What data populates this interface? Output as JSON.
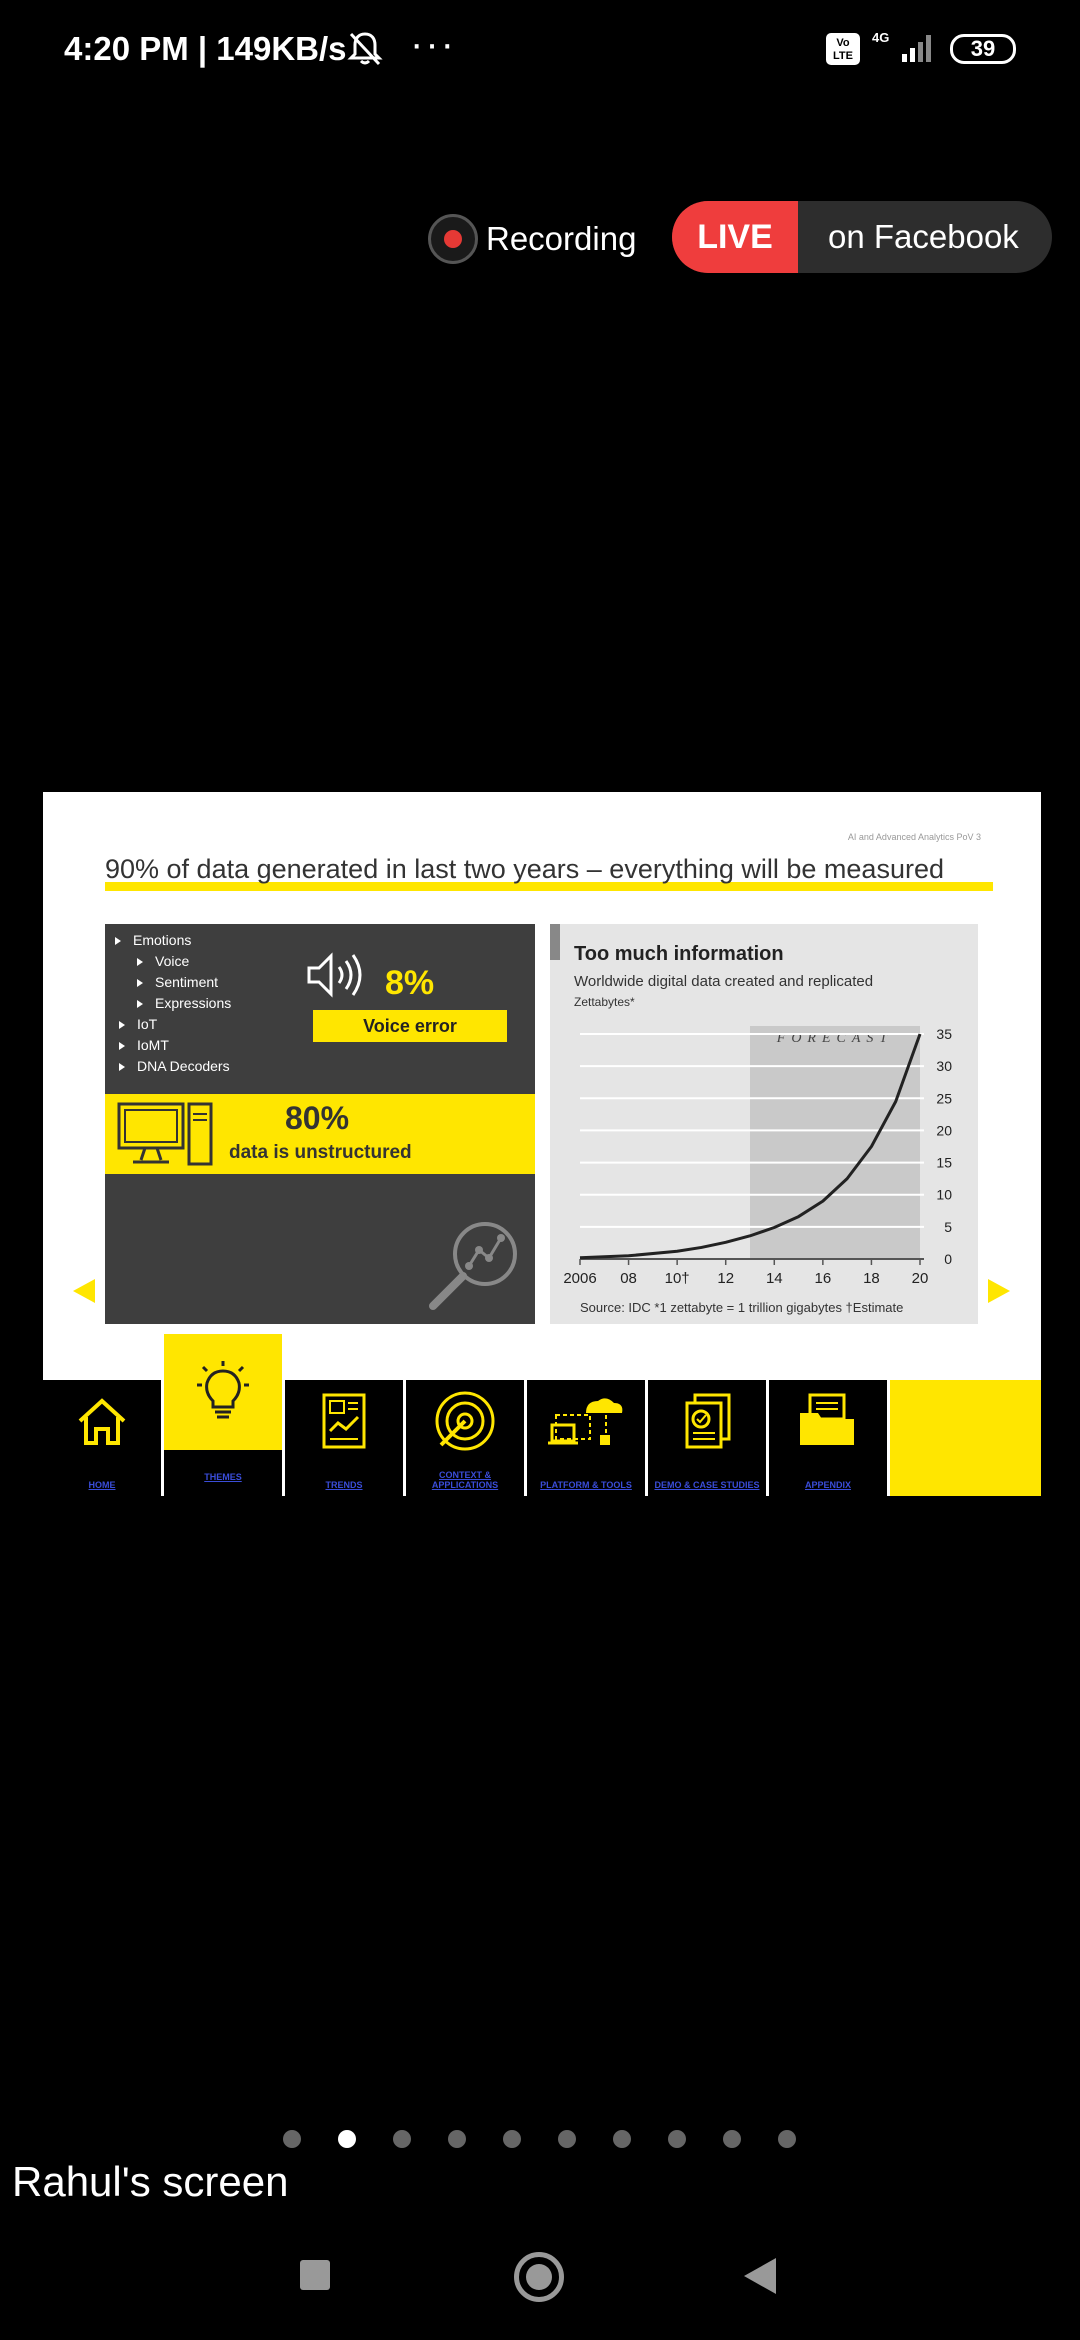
{
  "status_bar": {
    "time": "4:20 PM | 149KB/s",
    "more": "···",
    "volte": "Vo LTE",
    "network": "4G",
    "battery": "39"
  },
  "stream": {
    "recording_label": "Recording",
    "live_badge": "LIVE",
    "live_target": "on Facebook"
  },
  "slide": {
    "tag": "AI and Advanced Analytics PoV 3",
    "title": "90% of data generated  in last two years – everything will be measured",
    "tree": [
      {
        "label": "Emotions",
        "level": 1
      },
      {
        "label": "Voice",
        "level": 2
      },
      {
        "label": "Sentiment",
        "level": 2
      },
      {
        "label": "Expressions",
        "level": 2
      },
      {
        "label": "IoT",
        "level": 1
      },
      {
        "label": "IoMT",
        "level": 1
      },
      {
        "label": "DNA Decoders",
        "level": 1
      }
    ],
    "voice_pct": "8%",
    "voice_label": "Voice error",
    "unstructured_pct": "80%",
    "unstructured_label": "data is unstructured",
    "accent_color": "#ffe600"
  },
  "chart_data": {
    "type": "line",
    "title": "Too much information",
    "subtitle": "Worldwide digital data created and replicated",
    "ylabel": "Zettabytes*",
    "annotation": "FORECAST",
    "source": "Source: IDC    *1 zettabyte = 1 trillion gigabytes   †Estimate",
    "x": [
      2006,
      2008,
      2010,
      2011,
      2012,
      2013,
      2014,
      2015,
      2016,
      2017,
      2018,
      2019,
      2020
    ],
    "x_tick_labels": [
      "2006",
      "08",
      "10†",
      "12",
      "14",
      "16",
      "18",
      "20"
    ],
    "x_ticks": [
      2006,
      2008,
      2010,
      2012,
      2014,
      2016,
      2018,
      2020
    ],
    "series": [
      {
        "values": [
          0.2,
          0.5,
          1.2,
          1.8,
          2.6,
          3.6,
          4.9,
          6.6,
          9.0,
          12.5,
          17.5,
          24.5,
          35
        ]
      }
    ],
    "ylim": [
      0,
      35
    ],
    "y_ticks": [
      0,
      5,
      10,
      15,
      20,
      25,
      30,
      35
    ],
    "xlim": [
      2006,
      2020
    ],
    "forecast_range": [
      2013,
      2020
    ],
    "grid": true
  },
  "nav": {
    "tabs": [
      {
        "label": "HOME",
        "icon": "home-icon"
      },
      {
        "label": "THEMES",
        "icon": "lightbulb-icon"
      },
      {
        "label": "TRENDS",
        "icon": "trends-icon"
      },
      {
        "label": "CONTEXT & APPLICATIONS",
        "icon": "target-icon"
      },
      {
        "label": "PLATFORM & TOOLS",
        "icon": "cloud-icon"
      },
      {
        "label": "DEMO & CASE STUDIES",
        "icon": "document-check-icon"
      },
      {
        "label": "APPENDIX",
        "icon": "folder-icon"
      }
    ]
  },
  "pager": {
    "count": 10,
    "active": 1
  },
  "screen_owner": "Rahul's screen"
}
